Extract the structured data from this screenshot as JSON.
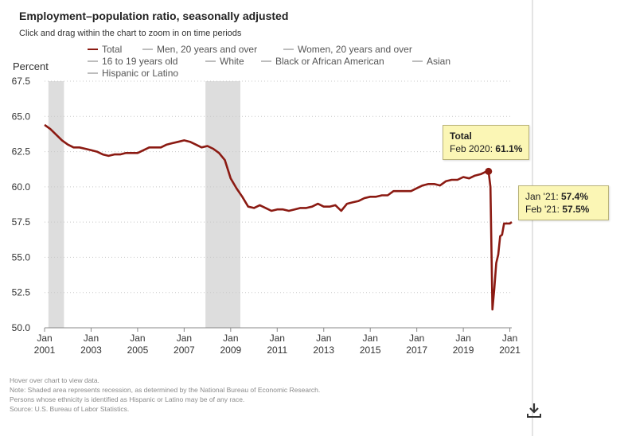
{
  "header": {
    "title": "Employment–population ratio, seasonally adjusted",
    "subtitle": "Click and drag within the chart to zoom in on time periods"
  },
  "tooltips": {
    "total": {
      "series": "Total",
      "label": "Feb 2020:",
      "value": "61.1%"
    },
    "recent": [
      {
        "label": "Jan '21:",
        "value": "57.4%"
      },
      {
        "label": "Feb '21:",
        "value": "57.5%"
      }
    ]
  },
  "footnotes": [
    "Hover over chart to view data.",
    "Note: Shaded area represents recession, as determined by the National Bureau of Economic Research.",
    "Persons whose ethnicity is identified as Hispanic or Latino may be of any race.",
    "Source: U.S. Bureau of Labor Statistics."
  ],
  "colors": {
    "total_line": "#8b1a12",
    "other_lines": "#bdbdbd",
    "recession": "#dddddd",
    "tooltip_bg": "#fbf6b5"
  },
  "icons": {
    "download": "download-icon"
  },
  "chart_data": {
    "type": "line",
    "ylabel": "Percent",
    "xlabel": "",
    "ylim": [
      50.0,
      67.5
    ],
    "yticks": [
      "50.0",
      "52.5",
      "55.0",
      "57.5",
      "60.0",
      "62.5",
      "65.0",
      "67.5"
    ],
    "xticks": [
      {
        "month": "Jan",
        "year": "2001"
      },
      {
        "month": "Jan",
        "year": "2003"
      },
      {
        "month": "Jan",
        "year": "2005"
      },
      {
        "month": "Jan",
        "year": "2007"
      },
      {
        "month": "Jan",
        "year": "2009"
      },
      {
        "month": "Jan",
        "year": "2011"
      },
      {
        "month": "Jan",
        "year": "2013"
      },
      {
        "month": "Jan",
        "year": "2015"
      },
      {
        "month": "Jan",
        "year": "2017"
      },
      {
        "month": "Jan",
        "year": "2019"
      },
      {
        "month": "Jan",
        "year": "2021"
      }
    ],
    "grid": "horizontal dotted",
    "legend_position": "top",
    "legend": [
      "Total",
      "Men, 20 years and over",
      "Women, 20 years and over",
      "16 to 19 years old",
      "White",
      "Black or African American",
      "Asian",
      "Hispanic or Latino"
    ],
    "recessions": [
      {
        "start": "2001-03",
        "end": "2001-11"
      },
      {
        "start": "2007-12",
        "end": "2009-06"
      }
    ],
    "series": [
      {
        "name": "Total",
        "points": [
          [
            "2001-01",
            64.4
          ],
          [
            "2001-04",
            64.1
          ],
          [
            "2001-07",
            63.7
          ],
          [
            "2001-10",
            63.3
          ],
          [
            "2002-01",
            63.0
          ],
          [
            "2002-04",
            62.8
          ],
          [
            "2002-07",
            62.8
          ],
          [
            "2002-10",
            62.7
          ],
          [
            "2003-01",
            62.6
          ],
          [
            "2003-04",
            62.5
          ],
          [
            "2003-07",
            62.3
          ],
          [
            "2003-10",
            62.2
          ],
          [
            "2004-01",
            62.3
          ],
          [
            "2004-04",
            62.3
          ],
          [
            "2004-07",
            62.4
          ],
          [
            "2004-10",
            62.4
          ],
          [
            "2005-01",
            62.4
          ],
          [
            "2005-04",
            62.6
          ],
          [
            "2005-07",
            62.8
          ],
          [
            "2005-10",
            62.8
          ],
          [
            "2006-01",
            62.8
          ],
          [
            "2006-04",
            63.0
          ],
          [
            "2006-07",
            63.1
          ],
          [
            "2006-10",
            63.2
          ],
          [
            "2007-01",
            63.3
          ],
          [
            "2007-04",
            63.2
          ],
          [
            "2007-07",
            63.0
          ],
          [
            "2007-10",
            62.8
          ],
          [
            "2008-01",
            62.9
          ],
          [
            "2008-04",
            62.7
          ],
          [
            "2008-07",
            62.4
          ],
          [
            "2008-10",
            61.9
          ],
          [
            "2009-01",
            60.6
          ],
          [
            "2009-04",
            59.9
          ],
          [
            "2009-07",
            59.3
          ],
          [
            "2009-10",
            58.6
          ],
          [
            "2010-01",
            58.5
          ],
          [
            "2010-04",
            58.7
          ],
          [
            "2010-07",
            58.5
          ],
          [
            "2010-10",
            58.3
          ],
          [
            "2011-01",
            58.4
          ],
          [
            "2011-04",
            58.4
          ],
          [
            "2011-07",
            58.3
          ],
          [
            "2011-10",
            58.4
          ],
          [
            "2012-01",
            58.5
          ],
          [
            "2012-04",
            58.5
          ],
          [
            "2012-07",
            58.6
          ],
          [
            "2012-10",
            58.8
          ],
          [
            "2013-01",
            58.6
          ],
          [
            "2013-04",
            58.6
          ],
          [
            "2013-07",
            58.7
          ],
          [
            "2013-10",
            58.3
          ],
          [
            "2014-01",
            58.8
          ],
          [
            "2014-04",
            58.9
          ],
          [
            "2014-07",
            59.0
          ],
          [
            "2014-10",
            59.2
          ],
          [
            "2015-01",
            59.3
          ],
          [
            "2015-04",
            59.3
          ],
          [
            "2015-07",
            59.4
          ],
          [
            "2015-10",
            59.4
          ],
          [
            "2016-01",
            59.7
          ],
          [
            "2016-04",
            59.7
          ],
          [
            "2016-07",
            59.7
          ],
          [
            "2016-10",
            59.7
          ],
          [
            "2017-01",
            59.9
          ],
          [
            "2017-04",
            60.1
          ],
          [
            "2017-07",
            60.2
          ],
          [
            "2017-10",
            60.2
          ],
          [
            "2018-01",
            60.1
          ],
          [
            "2018-04",
            60.4
          ],
          [
            "2018-07",
            60.5
          ],
          [
            "2018-10",
            60.5
          ],
          [
            "2019-01",
            60.7
          ],
          [
            "2019-04",
            60.6
          ],
          [
            "2019-07",
            60.8
          ],
          [
            "2019-10",
            60.9
          ],
          [
            "2020-01",
            61.1
          ],
          [
            "2020-02",
            61.1
          ],
          [
            "2020-03",
            60.0
          ],
          [
            "2020-04",
            51.3
          ],
          [
            "2020-05",
            52.8
          ],
          [
            "2020-06",
            54.6
          ],
          [
            "2020-07",
            55.2
          ],
          [
            "2020-08",
            56.5
          ],
          [
            "2020-09",
            56.6
          ],
          [
            "2020-10",
            57.4
          ],
          [
            "2020-11",
            57.4
          ],
          [
            "2020-12",
            57.4
          ],
          [
            "2021-01",
            57.4
          ],
          [
            "2021-02",
            57.5
          ]
        ]
      }
    ],
    "highlight": {
      "series": "Total",
      "x": "2020-02",
      "y": 61.1
    }
  }
}
